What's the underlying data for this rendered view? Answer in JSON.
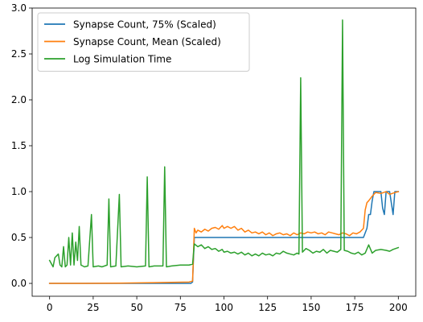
{
  "chart_data": {
    "type": "line",
    "title": "",
    "xlabel": "",
    "ylabel": "",
    "xlim": [
      -10,
      210
    ],
    "ylim": [
      -0.14,
      3.0
    ],
    "xticks": [
      0,
      25,
      50,
      75,
      100,
      125,
      150,
      175,
      200
    ],
    "yticks": [
      0.0,
      0.5,
      1.0,
      1.5,
      2.0,
      2.5,
      3.0
    ],
    "xtick_labels": [
      "0",
      "25",
      "50",
      "75",
      "100",
      "125",
      "150",
      "175",
      "200"
    ],
    "ytick_labels": [
      "0.0",
      "0.5",
      "1.0",
      "1.5",
      "2.0",
      "2.5",
      "3.0"
    ],
    "grid": false,
    "legend_position": "top-left",
    "series": [
      {
        "name": "Synapse Count, 75% (Scaled)",
        "color": "#1f77b4",
        "points": [
          [
            0,
            0.0
          ],
          [
            81,
            0.0
          ],
          [
            82,
            0.015
          ],
          [
            83,
            0.5
          ],
          [
            100,
            0.5
          ],
          [
            125,
            0.5
          ],
          [
            150,
            0.5
          ],
          [
            178,
            0.5
          ],
          [
            180,
            0.5
          ],
          [
            182,
            0.6
          ],
          [
            183,
            0.75
          ],
          [
            184,
            0.75
          ],
          [
            185,
            0.9
          ],
          [
            186,
            1.0
          ],
          [
            190,
            1.0
          ],
          [
            191,
            0.82
          ],
          [
            192,
            0.75
          ],
          [
            193,
            1.0
          ],
          [
            195,
            1.0
          ],
          [
            197,
            0.75
          ],
          [
            198,
            1.0
          ],
          [
            200,
            1.0
          ]
        ]
      },
      {
        "name": "Synapse Count, Mean (Scaled)",
        "color": "#ff7f0e",
        "points": [
          [
            0,
            0.0
          ],
          [
            20,
            0.0
          ],
          [
            40,
            0.003
          ],
          [
            60,
            0.008
          ],
          [
            80,
            0.015
          ],
          [
            82,
            0.025
          ],
          [
            83,
            0.6
          ],
          [
            84,
            0.55
          ],
          [
            85,
            0.58
          ],
          [
            87,
            0.56
          ],
          [
            89,
            0.59
          ],
          [
            91,
            0.57
          ],
          [
            93,
            0.6
          ],
          [
            95,
            0.61
          ],
          [
            97,
            0.59
          ],
          [
            99,
            0.63
          ],
          [
            100,
            0.6
          ],
          [
            102,
            0.62
          ],
          [
            104,
            0.6
          ],
          [
            106,
            0.62
          ],
          [
            108,
            0.58
          ],
          [
            110,
            0.6
          ],
          [
            112,
            0.56
          ],
          [
            114,
            0.58
          ],
          [
            116,
            0.55
          ],
          [
            118,
            0.56
          ],
          [
            120,
            0.54
          ],
          [
            122,
            0.56
          ],
          [
            124,
            0.53
          ],
          [
            126,
            0.55
          ],
          [
            128,
            0.52
          ],
          [
            130,
            0.54
          ],
          [
            132,
            0.55
          ],
          [
            134,
            0.53
          ],
          [
            136,
            0.54
          ],
          [
            138,
            0.52
          ],
          [
            140,
            0.55
          ],
          [
            142,
            0.53
          ],
          [
            144,
            0.55
          ],
          [
            146,
            0.54
          ],
          [
            148,
            0.56
          ],
          [
            150,
            0.55
          ],
          [
            152,
            0.56
          ],
          [
            154,
            0.54
          ],
          [
            156,
            0.55
          ],
          [
            158,
            0.53
          ],
          [
            160,
            0.56
          ],
          [
            162,
            0.55
          ],
          [
            164,
            0.54
          ],
          [
            166,
            0.53
          ],
          [
            168,
            0.55
          ],
          [
            170,
            0.54
          ],
          [
            172,
            0.52
          ],
          [
            174,
            0.55
          ],
          [
            176,
            0.54
          ],
          [
            178,
            0.56
          ],
          [
            180,
            0.6
          ],
          [
            181,
            0.8
          ],
          [
            182,
            0.88
          ],
          [
            183,
            0.9
          ],
          [
            185,
            0.95
          ],
          [
            187,
            0.99
          ],
          [
            190,
            0.98
          ],
          [
            193,
            1.0
          ],
          [
            195,
            0.97
          ],
          [
            198,
            0.99
          ],
          [
            200,
            1.0
          ]
        ]
      },
      {
        "name": "Log Simulation Time",
        "color": "#2ca02c",
        "points": [
          [
            0,
            0.25
          ],
          [
            2,
            0.18
          ],
          [
            3,
            0.28
          ],
          [
            5,
            0.32
          ],
          [
            6,
            0.2
          ],
          [
            7,
            0.18
          ],
          [
            8,
            0.4
          ],
          [
            9,
            0.18
          ],
          [
            10,
            0.2
          ],
          [
            11,
            0.5
          ],
          [
            12,
            0.2
          ],
          [
            13,
            0.55
          ],
          [
            14,
            0.2
          ],
          [
            15,
            0.45
          ],
          [
            16,
            0.25
          ],
          [
            17,
            0.62
          ],
          [
            18,
            0.2
          ],
          [
            20,
            0.18
          ],
          [
            22,
            0.19
          ],
          [
            24,
            0.75
          ],
          [
            25,
            0.18
          ],
          [
            28,
            0.19
          ],
          [
            30,
            0.18
          ],
          [
            33,
            0.2
          ],
          [
            34,
            0.92
          ],
          [
            35,
            0.18
          ],
          [
            38,
            0.19
          ],
          [
            40,
            0.97
          ],
          [
            41,
            0.18
          ],
          [
            45,
            0.19
          ],
          [
            50,
            0.18
          ],
          [
            55,
            0.19
          ],
          [
            56,
            1.16
          ],
          [
            57,
            0.18
          ],
          [
            60,
            0.19
          ],
          [
            65,
            0.19
          ],
          [
            66,
            1.27
          ],
          [
            67,
            0.18
          ],
          [
            70,
            0.19
          ],
          [
            75,
            0.2
          ],
          [
            80,
            0.2
          ],
          [
            82,
            0.21
          ],
          [
            83,
            0.43
          ],
          [
            85,
            0.4
          ],
          [
            87,
            0.42
          ],
          [
            89,
            0.38
          ],
          [
            91,
            0.4
          ],
          [
            93,
            0.37
          ],
          [
            95,
            0.38
          ],
          [
            97,
            0.35
          ],
          [
            99,
            0.37
          ],
          [
            100,
            0.34
          ],
          [
            102,
            0.35
          ],
          [
            104,
            0.33
          ],
          [
            106,
            0.34
          ],
          [
            108,
            0.32
          ],
          [
            110,
            0.34
          ],
          [
            112,
            0.31
          ],
          [
            114,
            0.33
          ],
          [
            116,
            0.3
          ],
          [
            118,
            0.32
          ],
          [
            120,
            0.3
          ],
          [
            122,
            0.33
          ],
          [
            124,
            0.31
          ],
          [
            126,
            0.32
          ],
          [
            128,
            0.3
          ],
          [
            130,
            0.33
          ],
          [
            132,
            0.32
          ],
          [
            134,
            0.35
          ],
          [
            136,
            0.33
          ],
          [
            138,
            0.32
          ],
          [
            140,
            0.31
          ],
          [
            142,
            0.33
          ],
          [
            143,
            0.32
          ],
          [
            144,
            2.24
          ],
          [
            145,
            0.34
          ],
          [
            147,
            0.38
          ],
          [
            149,
            0.36
          ],
          [
            151,
            0.33
          ],
          [
            153,
            0.35
          ],
          [
            155,
            0.34
          ],
          [
            157,
            0.37
          ],
          [
            159,
            0.33
          ],
          [
            161,
            0.36
          ],
          [
            163,
            0.35
          ],
          [
            165,
            0.34
          ],
          [
            167,
            0.37
          ],
          [
            168,
            2.87
          ],
          [
            169,
            0.36
          ],
          [
            171,
            0.35
          ],
          [
            173,
            0.33
          ],
          [
            175,
            0.32
          ],
          [
            177,
            0.34
          ],
          [
            179,
            0.31
          ],
          [
            181,
            0.33
          ],
          [
            183,
            0.42
          ],
          [
            185,
            0.33
          ],
          [
            187,
            0.36
          ],
          [
            190,
            0.37
          ],
          [
            193,
            0.36
          ],
          [
            195,
            0.35
          ],
          [
            197,
            0.37
          ],
          [
            200,
            0.39
          ]
        ]
      }
    ]
  }
}
